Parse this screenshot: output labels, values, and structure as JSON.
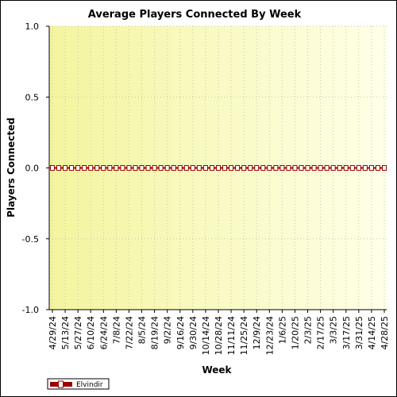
{
  "chart_data": {
    "type": "line",
    "title": "Average Players Connected By Week",
    "xlabel": "Week",
    "ylabel": "Players Connected",
    "ylim": [
      -1.0,
      1.0
    ],
    "yticks": [
      "1.0",
      "0.5",
      "0.0",
      "-0.5",
      "-1.0"
    ],
    "ytick_values": [
      1.0,
      0.5,
      0.0,
      -0.5,
      -1.0
    ],
    "x_tick_labels": [
      "4/29/24",
      "5/13/24",
      "5/27/24",
      "6/10/24",
      "6/24/24",
      "7/8/24",
      "7/22/24",
      "8/5/24",
      "8/19/24",
      "9/2/24",
      "9/16/24",
      "9/30/24",
      "10/14/24",
      "10/28/24",
      "11/11/24",
      "11/25/24",
      "12/9/24",
      "12/23/24",
      "1/6/25",
      "1/20/25",
      "2/3/25",
      "2/17/25",
      "3/3/25",
      "3/17/25",
      "3/31/25",
      "4/14/25",
      "4/28/25"
    ],
    "grid": true,
    "legend_position": "bottom-left",
    "series": [
      {
        "name": "Elvindir",
        "color": "#990000",
        "values": [
          0,
          0,
          0,
          0,
          0,
          0,
          0,
          0,
          0,
          0,
          0,
          0,
          0,
          0,
          0,
          0,
          0,
          0,
          0,
          0,
          0,
          0,
          0,
          0,
          0,
          0,
          0,
          0,
          0,
          0,
          0,
          0,
          0,
          0,
          0,
          0,
          0,
          0,
          0,
          0,
          0,
          0,
          0,
          0,
          0,
          0,
          0,
          0,
          0,
          0,
          0,
          0,
          0
        ]
      }
    ]
  }
}
